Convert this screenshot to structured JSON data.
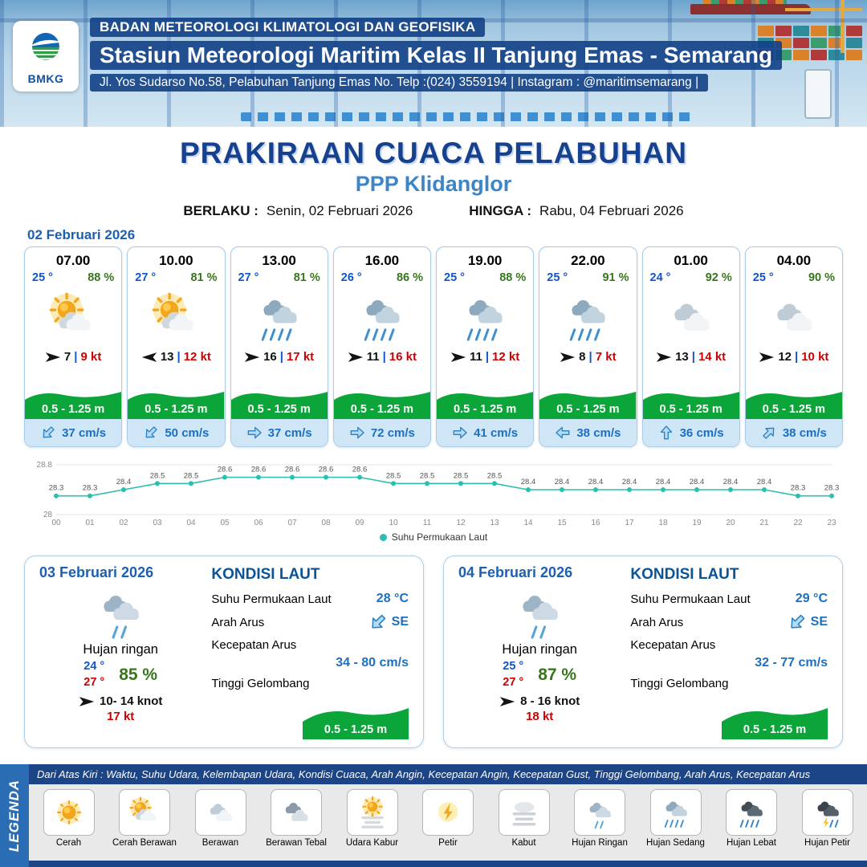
{
  "header": {
    "logo_text": "BMKG",
    "agency": "BADAN METEOROLOGI KLIMATOLOGI DAN GEOFISIKA",
    "station": "Stasiun Meteorologi Maritim Kelas II Tanjung Emas - Semarang",
    "address": "Jl. Yos Sudarso No.58, Pelabuhan Tanjung Emas No. Telp :(024) 3559194 | Instagram : @maritimsemarang |"
  },
  "title": {
    "main": "PRAKIRAAN CUACA PELABUHAN",
    "sub": "PPP Klidanglor",
    "berlaku_label": "BERLAKU :",
    "berlaku_value": "Senin, 02 Februari 2026",
    "hingga_label": "HINGGA :",
    "hingga_value": "Rabu, 04 Februari 2026"
  },
  "ui": {
    "wind_separator": "|"
  },
  "day1": {
    "date": "02 Februari 2026",
    "cards": [
      {
        "time": "07.00",
        "temp": "25 °",
        "humidity": "88 %",
        "icon": "cerah-berawan",
        "wind_rot": 0,
        "wind": "7",
        "gust": "9 kt",
        "wave": "0.5 - 1.25 m",
        "current_rot": 135,
        "current": "37 cm/s"
      },
      {
        "time": "10.00",
        "temp": "27 °",
        "humidity": "81 %",
        "icon": "cerah-berawan",
        "wind_rot": 180,
        "wind": "13",
        "gust": "12 kt",
        "wave": "0.5 - 1.25 m",
        "current_rot": 135,
        "current": "50 cm/s"
      },
      {
        "time": "13.00",
        "temp": "27 °",
        "humidity": "81 %",
        "icon": "hujan-sedang",
        "wind_rot": 0,
        "wind": "16",
        "gust": "17 kt",
        "wave": "0.5 - 1.25 m",
        "current_rot": 0,
        "current": "37 cm/s"
      },
      {
        "time": "16.00",
        "temp": "26 °",
        "humidity": "86 %",
        "icon": "hujan-sedang",
        "wind_rot": 0,
        "wind": "11",
        "gust": "16 kt",
        "wave": "0.5 - 1.25 m",
        "current_rot": 0,
        "current": "72 cm/s"
      },
      {
        "time": "19.00",
        "temp": "25 °",
        "humidity": "88 %",
        "icon": "hujan-sedang",
        "wind_rot": 0,
        "wind": "11",
        "gust": "12 kt",
        "wave": "0.5 - 1.25 m",
        "current_rot": 0,
        "current": "41 cm/s"
      },
      {
        "time": "22.00",
        "temp": "25 °",
        "humidity": "91 %",
        "icon": "hujan-sedang",
        "wind_rot": 0,
        "wind": "8",
        "gust": "7 kt",
        "wave": "0.5 - 1.25 m",
        "current_rot": 180,
        "current": "38 cm/s"
      },
      {
        "time": "01.00",
        "temp": "24 °",
        "humidity": "92 %",
        "icon": "berawan",
        "wind_rot": 0,
        "wind": "13",
        "gust": "14 kt",
        "wave": "0.5 - 1.25 m",
        "current_rot": 270,
        "current": "36 cm/s"
      },
      {
        "time": "04.00",
        "temp": "25 °",
        "humidity": "90 %",
        "icon": "berawan",
        "wind_rot": 0,
        "wind": "12",
        "gust": "10 kt",
        "wave": "0.5 - 1.25 m",
        "current_rot": 315,
        "current": "38 cm/s"
      }
    ]
  },
  "chart_data": {
    "type": "line",
    "series_name": "Suhu Permukaan Laut",
    "x": [
      "00",
      "01",
      "02",
      "03",
      "04",
      "05",
      "06",
      "07",
      "08",
      "09",
      "10",
      "11",
      "12",
      "13",
      "14",
      "15",
      "16",
      "17",
      "18",
      "19",
      "20",
      "21",
      "22",
      "23"
    ],
    "values": [
      28.3,
      28.3,
      28.4,
      28.5,
      28.5,
      28.6,
      28.6,
      28.6,
      28.6,
      28.6,
      28.5,
      28.5,
      28.5,
      28.5,
      28.4,
      28.4,
      28.4,
      28.4,
      28.4,
      28.4,
      28.4,
      28.4,
      28.3,
      28.3
    ],
    "ylim": [
      28,
      28.8
    ],
    "grid": true,
    "legend_position": "bottom",
    "line_color": "#2bbfae"
  },
  "daily": [
    {
      "date": "03 Februari 2026",
      "icon": "hujan-ringan",
      "condition": "Hujan ringan",
      "temp_min": "24 °",
      "temp_max": "27 °",
      "humidity": "85 %",
      "wind": "10- 14 knot",
      "gust": "17 kt",
      "kondisi_laut_title": "KONDISI LAUT",
      "sst_label": "Suhu Permukaan Laut",
      "sst": "28 °C",
      "arah_label": "Arah Arus",
      "arah": "SE",
      "arah_rot": 135,
      "kecepatan_label": "Kecepatan Arus",
      "kecepatan": "34 - 80 cm/s",
      "gelombang_label": "Tinggi Gelombang",
      "gelombang": "0.5 - 1.25 m"
    },
    {
      "date": "04 Februari 2026",
      "icon": "hujan-ringan",
      "condition": "Hujan ringan",
      "temp_min": "25 °",
      "temp_max": "27 °",
      "humidity": "87 %",
      "wind": "8 - 16 knot",
      "gust": "18 kt",
      "kondisi_laut_title": "KONDISI LAUT",
      "sst_label": "Suhu Permukaan Laut",
      "sst": "29 °C",
      "arah_label": "Arah Arus",
      "arah": "SE",
      "arah_rot": 135,
      "kecepatan_label": "Kecepatan Arus",
      "kecepatan": "32 - 77 cm/s",
      "gelombang_label": "Tinggi Gelombang",
      "gelombang": "0.5 - 1.25 m"
    }
  ],
  "legend": {
    "title": "LEGENDA",
    "description": "Dari Atas Kiri : Waktu, Suhu Udara, Kelembapan Udara, Kondisi Cuaca, Arah Angin, Kecepatan Angin, Kecepatan Gust, Tinggi Gelombang, Arah Arus, Kecepatan Arus",
    "items": [
      {
        "label": "Cerah",
        "icon": "cerah"
      },
      {
        "label": "Cerah Berawan",
        "icon": "cerah-berawan"
      },
      {
        "label": "Berawan",
        "icon": "berawan"
      },
      {
        "label": "Berawan Tebal",
        "icon": "berawan-tebal"
      },
      {
        "label": "Udara Kabur",
        "icon": "udara-kabur"
      },
      {
        "label": "Petir",
        "icon": "petir"
      },
      {
        "label": "Kabut",
        "icon": "kabut"
      },
      {
        "label": "Hujan Ringan",
        "icon": "hujan-ringan"
      },
      {
        "label": "Hujan Sedang",
        "icon": "hujan-sedang"
      },
      {
        "label": "Hujan Lebat",
        "icon": "hujan-lebat"
      },
      {
        "label": "Hujan Petir",
        "icon": "hujan-petir"
      }
    ]
  },
  "colors": {
    "header_blue": "#12408a",
    "title_blue": "#16418f",
    "subtitle_blue": "#3d85c6",
    "temp_blue": "#1155cc",
    "humidity_green": "#38761d",
    "gust_red": "#cc0000",
    "wave_green": "#0ba53a",
    "current_bg": "#cfe6f7",
    "current_blue": "#1d6fc0",
    "chart_teal": "#2bbfae"
  }
}
